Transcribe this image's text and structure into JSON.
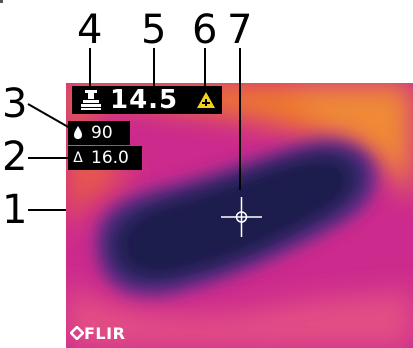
{
  "callouts": [
    "1",
    "2",
    "3",
    "4",
    "5",
    "6",
    "7"
  ],
  "overlay": {
    "temperature": "14.5",
    "humidity": "90",
    "dew_point": "16.0",
    "dew_symbol": "Δ"
  },
  "logo_text": "FLIR",
  "colors": {
    "hot": "#f07a2a",
    "mid": "#d12a8a",
    "cold": "#1e1e5a",
    "warning": "#f2d21b"
  },
  "icons": [
    "thermometer-icon",
    "humidity-drop-icon",
    "warning-triangle-icon",
    "crosshair-icon",
    "flir-logo-icon"
  ]
}
